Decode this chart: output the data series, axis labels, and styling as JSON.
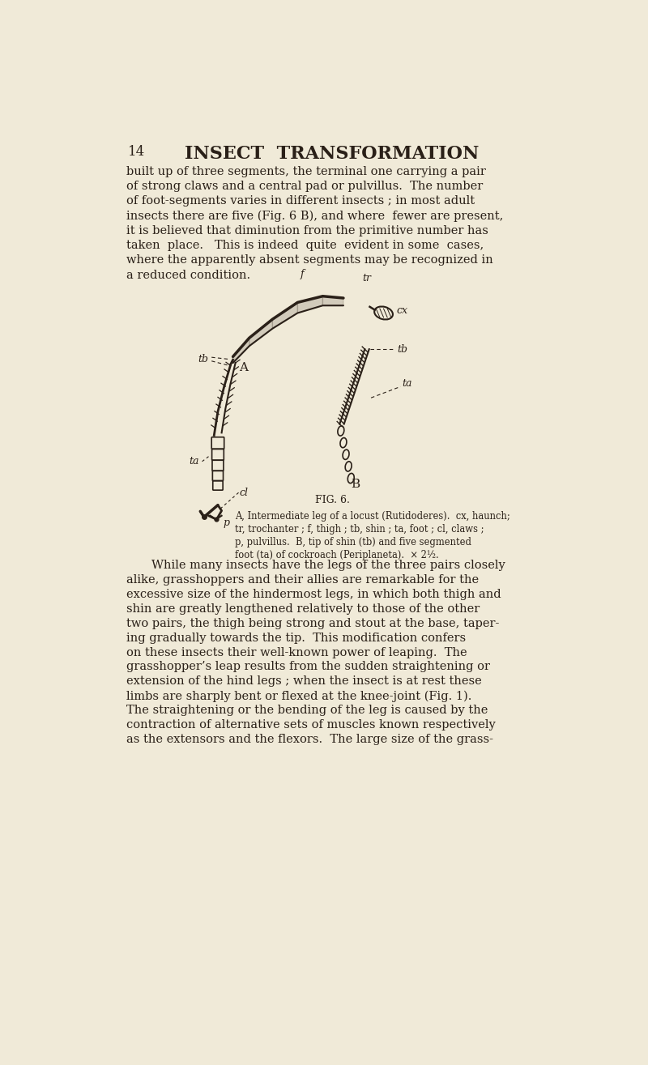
{
  "bg_color": "#f0ead8",
  "text_color": "#2a2018",
  "page_num": "14",
  "title": "INSECT  TRANSFORMATION",
  "para1_lines": [
    "built up of three segments, the terminal one carrying a pair",
    "of strong claws and a central pad or pulvillus.  The number",
    "of foot-segments varies in different insects ; in most adult",
    "insects there are five (Fig. 6 B), and where  fewer are present,",
    "it is believed that diminution from the primitive number has",
    "taken  place.   This is indeed  quite  evident in some  cases,",
    "where the apparently absent segments may be recognized in",
    "a reduced condition."
  ],
  "fig_caption_title": "FIG. 6.",
  "fig_caption_lines": [
    "A, Intermediate leg of a locust (Rutidoderes).  cx, haunch;",
    "tr, trochanter ; f, thigh ; tb, shin ; ta, foot ; cl, claws ;",
    "p, pulvillus.  B, tip of shin (tb) and five segmented",
    "foot (ta) of cockroach (Periplaneta).  × 2½."
  ],
  "para2_lines": [
    "While many insects have the legs of the three pairs closely",
    "alike, grasshoppers and their allies are remarkable for the",
    "excessive size of the hindermost legs, in which both thigh and",
    "shin are greatly lengthened relatively to those of the other",
    "two pairs, the thigh being strong and stout at the base, taper-",
    "ing gradually towards the tip.  This modification confers",
    "on these insects their well-known power of leaping.  The",
    "grasshopper’s leap results from the sudden straightening or",
    "extension of the hind legs ; when the insect is at rest these",
    "limbs are sharply bent or flexed at the knee-joint (Fig. 1).",
    "The straightening or the bending of the leg is caused by the",
    "contraction of alternative sets of muscles known respectively",
    "as the extensors and the flexors.  The large size of the grass-"
  ]
}
